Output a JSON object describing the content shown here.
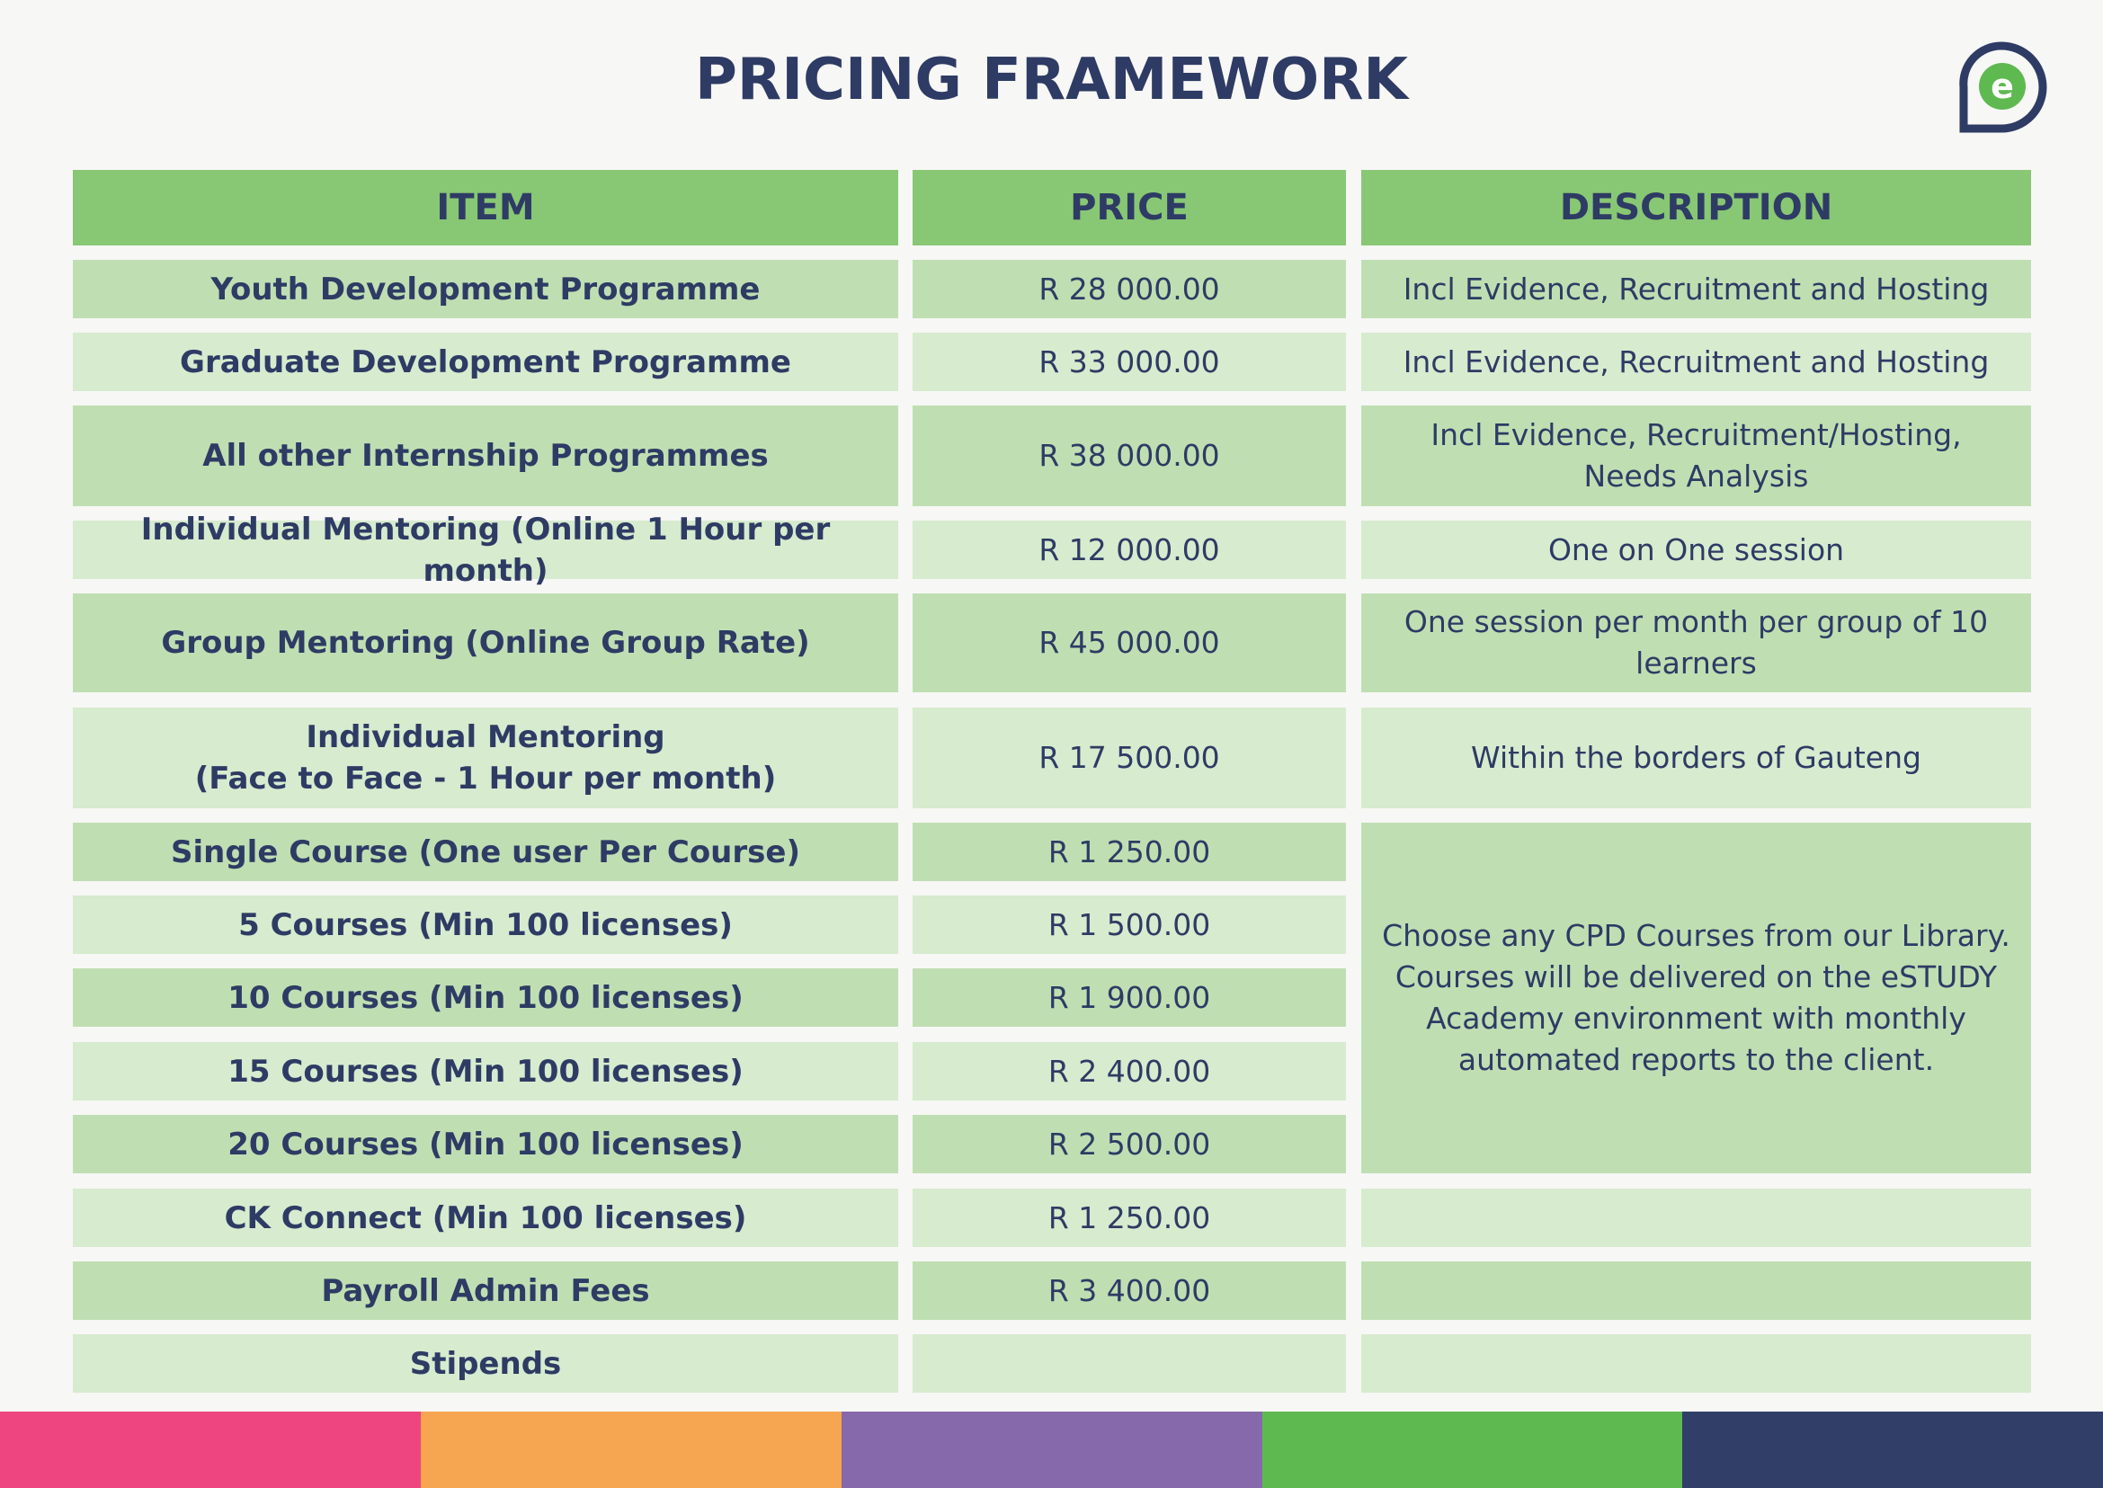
{
  "title": "PRICING FRAMEWORK",
  "logo_letter": "e",
  "headers": {
    "item": "ITEM",
    "price": "PRICE",
    "description": "DESCRIPTION"
  },
  "rows": [
    {
      "item": "Youth Development Programme",
      "price": "R 28 000.00",
      "description": "Incl Evidence, Recruitment and Hosting"
    },
    {
      "item": "Graduate Development Programme",
      "price": "R 33 000.00",
      "description": "Incl Evidence, Recruitment and Hosting"
    },
    {
      "item": "All other Internship Programmes",
      "price": "R 38 000.00",
      "description": "Incl Evidence, Recruitment/Hosting, Needs Analysis"
    },
    {
      "item": "Individual Mentoring (Online 1 Hour  per month)",
      "price": "R 12 000.00",
      "description": "One on One session"
    },
    {
      "item": "Group Mentoring (Online Group Rate)",
      "price": "R 45 000.00",
      "description": "One session per month per group of 10 learners"
    },
    {
      "item_line1": "Individual Mentoring",
      "item_line2": "(Face to Face - 1  Hour per month)",
      "price": "R 17 500.00",
      "description": "Within the borders of Gauteng"
    },
    {
      "item": "Single Course (One user Per Course)",
      "price": "R 1 250.00"
    },
    {
      "item": "5 Courses (Min 100 licenses)",
      "price": "R 1 500.00"
    },
    {
      "item": "10 Courses (Min 100 licenses)",
      "price": "R 1 900.00"
    },
    {
      "item": "15 Courses (Min 100 licenses)",
      "price": "R 2 400.00"
    },
    {
      "item": "20 Courses (Min 100 licenses)",
      "price": "R 2 500.00"
    },
    {
      "item": "CK Connect (Min 100 licenses)",
      "price": "R 1 250.00",
      "description": ""
    },
    {
      "item": "Payroll Admin Fees",
      "price": "R 3 400.00",
      "description": ""
    },
    {
      "item": "Stipends",
      "price": "",
      "description": ""
    }
  ],
  "courses_description": "Choose any CPD Courses from our Library. Courses will be delivered on the eSTUDY Academy environment with monthly automated reports to the client.",
  "colors": {
    "navy": "#2e3b64",
    "header_green": "#88c774",
    "row_dark": "#bfdfb3",
    "row_light": "#d7ebcf",
    "stripe_pink": "#ee4580",
    "stripe_orange": "#f6a550",
    "stripe_purple": "#8669ab",
    "stripe_green": "#5eb951",
    "stripe_navy": "#303e68"
  }
}
